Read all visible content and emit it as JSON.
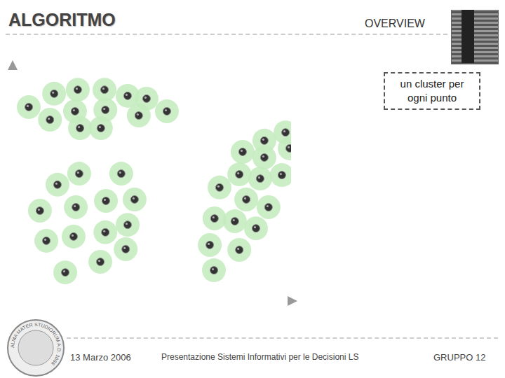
{
  "header": {
    "title": "ALGORITMO",
    "section": "OVERVIEW"
  },
  "callout": "un cluster per ogni punto",
  "chart_data": {
    "type": "scatter",
    "x": [
      5.8,
      14.9,
      23.4,
      33.0,
      41.3,
      48.1,
      13.4,
      22.4,
      33.3,
      45.3,
      55.4,
      24.2,
      31.7,
      23.9,
      39.0,
      16.1,
      9.8,
      22.7,
      33.5,
      43.8,
      41.3,
      12.1,
      21.9,
      33.3,
      40.6,
      31.5,
      18.9,
      98.0,
      90.4,
      99.5,
      82.6,
      90.4,
      81.4,
      88.9,
      96.7,
      74.3,
      83.9,
      91.9,
      72.5,
      79.8,
      87.4,
      70.8,
      81.4,
      72.3
    ],
    "values": [
      82.7,
      88.4,
      90.1,
      90.1,
      87.5,
      86.3,
      77.3,
      80.9,
      81.5,
      79.1,
      80.9,
      73.7,
      73.7,
      54.3,
      54.3,
      49.6,
      38.5,
      40.0,
      42.7,
      43.3,
      32.5,
      25.7,
      27.5,
      29.3,
      22.1,
      16.7,
      12.2,
      71.9,
      68.4,
      65.1,
      63.6,
      61.2,
      54.0,
      52.2,
      53.7,
      48.4,
      43.3,
      40.0,
      35.2,
      34.0,
      31.0,
      23.9,
      21.8,
      13.1
    ],
    "color": "#333333",
    "marker": "circle",
    "xlim": [
      0,
      100
    ],
    "ylim": [
      0,
      100
    ],
    "tick_labels": false
  },
  "footer": {
    "logo": "ALMA MATER STUDIORUM A.D. 1088",
    "date": "13 Marzo 2006",
    "course": "Presentazione Sistemi Informativi per le Decisioni LS",
    "group": "GRUPPO 12"
  }
}
